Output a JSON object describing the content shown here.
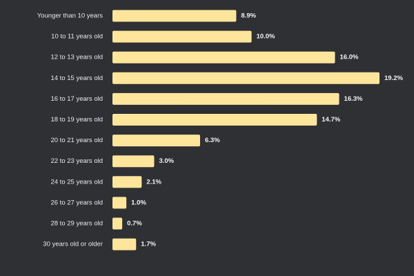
{
  "chart_data": {
    "type": "bar",
    "orientation": "horizontal",
    "title": "",
    "xlabel": "",
    "ylabel": "",
    "categories": [
      "Younger than 10 years",
      "10 to 11 years old",
      "12 to 13 years old",
      "14 to 15 years old",
      "16 to 17 years old",
      "18 to 19 years old",
      "20 to 21 years old",
      "22 to 23 years old",
      "24 to 25 years old",
      "26 to 27 years old",
      "28 to 29 years old",
      "30 years old or older"
    ],
    "values": [
      8.9,
      10.0,
      16.0,
      19.2,
      16.3,
      14.7,
      6.3,
      3.0,
      2.1,
      1.0,
      0.7,
      1.7
    ],
    "value_labels": [
      "8.9%",
      "10.0%",
      "16.0%",
      "19.2%",
      "16.3%",
      "14.7%",
      "6.3%",
      "3.0%",
      "2.1%",
      "1.0%",
      "0.7%",
      "1.7%"
    ],
    "unit": "%",
    "xlim": [
      0,
      19.2
    ],
    "grid": false,
    "legend": "none",
    "colors": {
      "background": "#2e3033",
      "bar": "#fde59b",
      "label": "#e8e8e8",
      "value_label": "#f2f2f2"
    }
  }
}
